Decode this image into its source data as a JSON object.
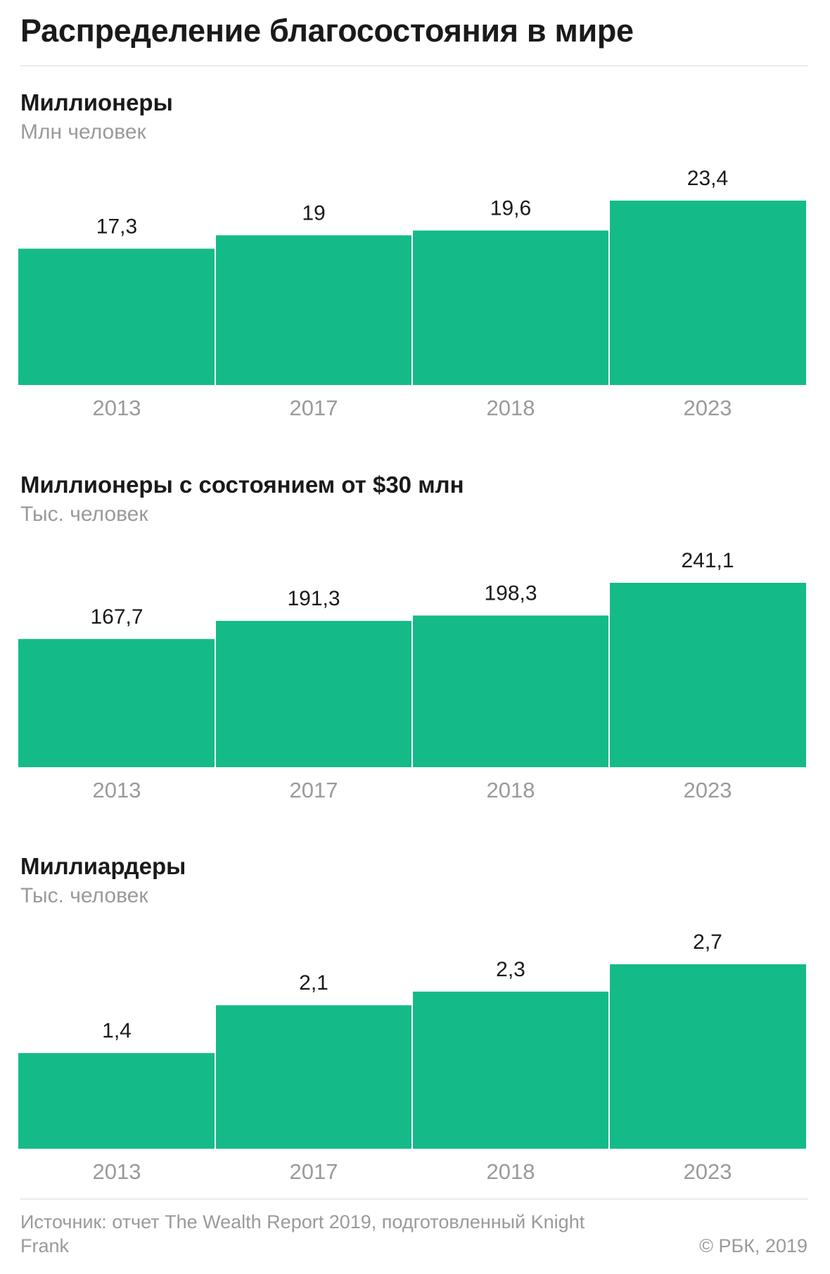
{
  "title": "Распределение благосостояния в мире",
  "charts": [
    {
      "title": "Миллионеры",
      "unit": "Млн человек"
    },
    {
      "title": "Миллионеры с состоянием от $30 млн",
      "unit": "Тыс. человек"
    },
    {
      "title": "Миллиардеры",
      "unit": "Тыс. человек"
    }
  ],
  "footer": {
    "source": "Источник: отчет The Wealth Report 2019, подготовленный Knight Frank",
    "copyright": "© РБК, 2019"
  },
  "colors": {
    "bar": "#14bb88",
    "label": "#1a1a1a",
    "axis_text": "#9a9a9a",
    "rule": "#d9d9d9"
  },
  "chart_data": [
    {
      "type": "bar",
      "title": "Миллионеры",
      "ylabel": "Млн человек",
      "categories": [
        "2013",
        "2017",
        "2018",
        "2023"
      ],
      "values": [
        17.3,
        19,
        19.6,
        23.4
      ],
      "value_labels": [
        "17,3",
        "19",
        "19,6",
        "23,4"
      ],
      "ylim": [
        0,
        23.4
      ],
      "grid": false
    },
    {
      "type": "bar",
      "title": "Миллионеры с состоянием от $30 млн",
      "ylabel": "Тыс. человек",
      "categories": [
        "2013",
        "2017",
        "2018",
        "2023"
      ],
      "values": [
        167.7,
        191.3,
        198.3,
        241.1
      ],
      "value_labels": [
        "167,7",
        "191,3",
        "198,3",
        "241,1"
      ],
      "ylim": [
        0,
        241.1
      ],
      "grid": false
    },
    {
      "type": "bar",
      "title": "Миллиардеры",
      "ylabel": "Тыс. человек",
      "categories": [
        "2013",
        "2017",
        "2018",
        "2023"
      ],
      "values": [
        1.4,
        2.1,
        2.3,
        2.7
      ],
      "value_labels": [
        "1,4",
        "2,1",
        "2,3",
        "2,7"
      ],
      "ylim": [
        0,
        2.7
      ],
      "grid": false
    }
  ]
}
